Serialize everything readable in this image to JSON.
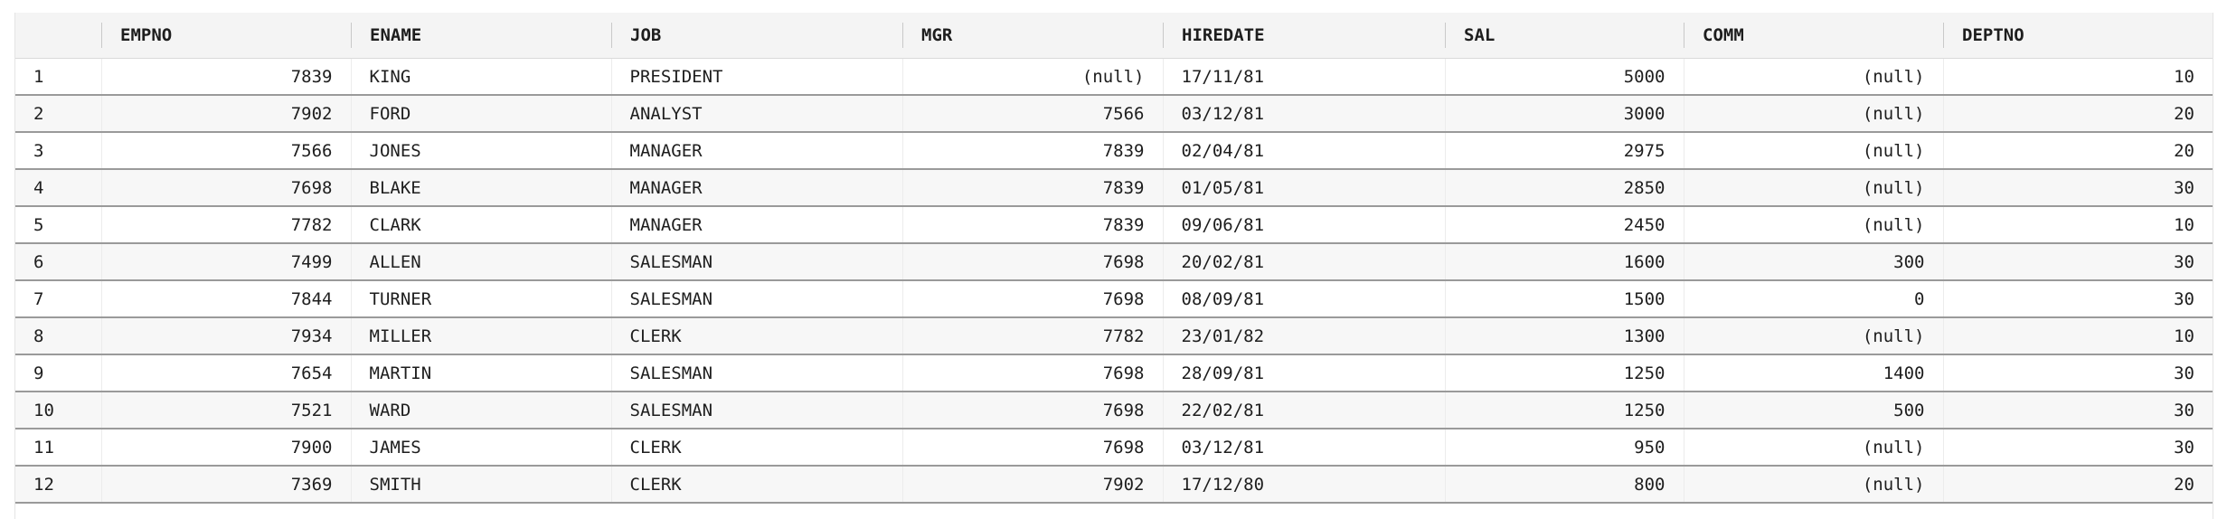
{
  "grid": {
    "columns": [
      {
        "key": "rownum",
        "label": "",
        "align": "left"
      },
      {
        "key": "empno",
        "label": "EMPNO",
        "align": "right"
      },
      {
        "key": "ename",
        "label": "ENAME",
        "align": "left"
      },
      {
        "key": "job",
        "label": "JOB",
        "align": "left"
      },
      {
        "key": "mgr",
        "label": "MGR",
        "align": "right"
      },
      {
        "key": "hiredate",
        "label": "HIREDATE",
        "align": "left"
      },
      {
        "key": "sal",
        "label": "SAL",
        "align": "right"
      },
      {
        "key": "comm",
        "label": "COMM",
        "align": "right"
      },
      {
        "key": "deptno",
        "label": "DEPTNO",
        "align": "right"
      }
    ],
    "rows": [
      [
        "1",
        "7839",
        "KING",
        "PRESIDENT",
        "(null)",
        "17/11/81",
        "5000",
        "(null)",
        "10"
      ],
      [
        "2",
        "7902",
        "FORD",
        "ANALYST",
        "7566",
        "03/12/81",
        "3000",
        "(null)",
        "20"
      ],
      [
        "3",
        "7566",
        "JONES",
        "MANAGER",
        "7839",
        "02/04/81",
        "2975",
        "(null)",
        "20"
      ],
      [
        "4",
        "7698",
        "BLAKE",
        "MANAGER",
        "7839",
        "01/05/81",
        "2850",
        "(null)",
        "30"
      ],
      [
        "5",
        "7782",
        "CLARK",
        "MANAGER",
        "7839",
        "09/06/81",
        "2450",
        "(null)",
        "10"
      ],
      [
        "6",
        "7499",
        "ALLEN",
        "SALESMAN",
        "7698",
        "20/02/81",
        "1600",
        "300",
        "30"
      ],
      [
        "7",
        "7844",
        "TURNER",
        "SALESMAN",
        "7698",
        "08/09/81",
        "1500",
        "0",
        "30"
      ],
      [
        "8",
        "7934",
        "MILLER",
        "CLERK",
        "7782",
        "23/01/82",
        "1300",
        "(null)",
        "10"
      ],
      [
        "9",
        "7654",
        "MARTIN",
        "SALESMAN",
        "7698",
        "28/09/81",
        "1250",
        "1400",
        "30"
      ],
      [
        "10",
        "7521",
        "WARD",
        "SALESMAN",
        "7698",
        "22/02/81",
        "1250",
        "500",
        "30"
      ],
      [
        "11",
        "7900",
        "JAMES",
        "CLERK",
        "7698",
        "03/12/81",
        "950",
        "(null)",
        "30"
      ],
      [
        "12",
        "7369",
        "SMITH",
        "CLERK",
        "7902",
        "17/12/80",
        "800",
        "(null)",
        "20"
      ]
    ]
  }
}
